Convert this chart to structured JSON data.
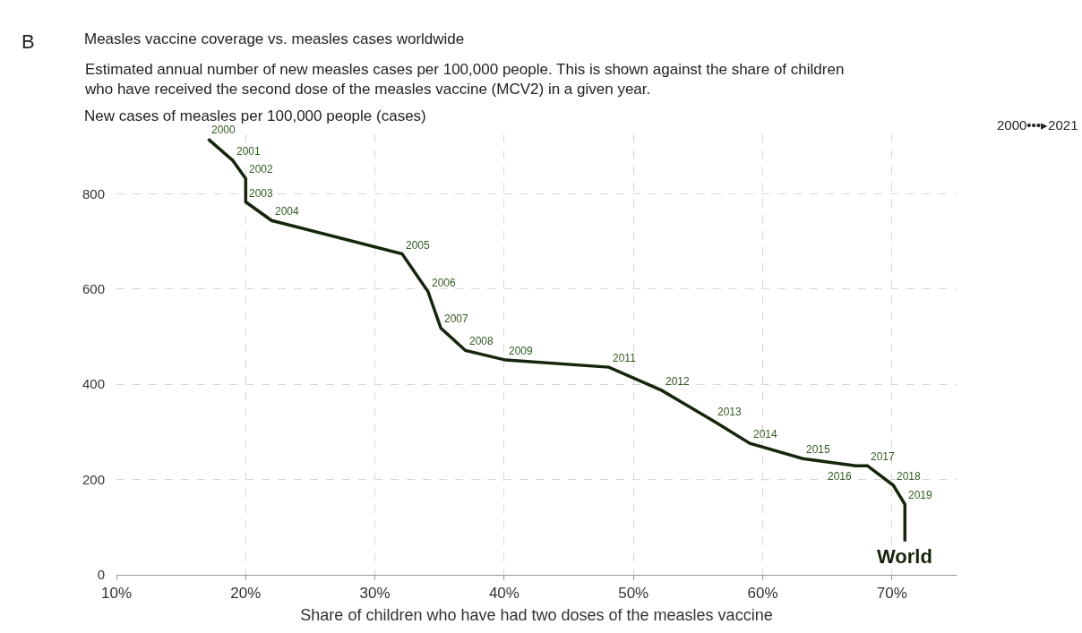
{
  "chart_data": {
    "type": "line",
    "title": "Measles vaccine coverage vs. measles cases worldwide",
    "subtitle": "Estimated annual number of new measles cases per 100,000 people. This is shown against the share of children who have received the second dose of the measles vaccine (MCV2) in a given year.",
    "ylabel": "New cases of measles per 100,000 people (cases)",
    "xlabel": "Share of children who have had two doses of the measles vaccine",
    "series": [
      {
        "name": "World",
        "color": "#15260c",
        "x": [
          17.1,
          19.0,
          20.0,
          20.0,
          22.0,
          32.1,
          34.1,
          35.1,
          37.0,
          40.1,
          48.1,
          52.2,
          56.2,
          59.0,
          63.1,
          67.2,
          68.1,
          70.1,
          71.0,
          71.0
        ],
        "values": [
          915,
          870,
          832,
          783,
          744,
          674,
          595,
          518,
          471,
          451,
          436,
          387,
          323,
          276,
          244,
          229,
          229,
          188,
          148,
          70
        ]
      }
    ],
    "annotations": [
      "B",
      "2000•••▸2021",
      {
        "text": "2000",
        "x": 17.1,
        "y": 915
      },
      {
        "text": "2001",
        "x": 19.0,
        "y": 870
      },
      {
        "text": "2002",
        "x": 20.0,
        "y": 832
      },
      {
        "text": "2003",
        "x": 20.0,
        "y": 783
      },
      {
        "text": "2004",
        "x": 22.0,
        "y": 744
      },
      {
        "text": "2005",
        "x": 32.1,
        "y": 674
      },
      {
        "text": "2006",
        "x": 34.1,
        "y": 595
      },
      {
        "text": "2007",
        "x": 35.1,
        "y": 518
      },
      {
        "text": "2008",
        "x": 37.0,
        "y": 471
      },
      {
        "text": "2009",
        "x": 40.1,
        "y": 451
      },
      {
        "text": "2011",
        "x": 48.1,
        "y": 436
      },
      {
        "text": "2012",
        "x": 52.2,
        "y": 387
      },
      {
        "text": "2013",
        "x": 56.2,
        "y": 323
      },
      {
        "text": "2014",
        "x": 59.0,
        "y": 276
      },
      {
        "text": "2015",
        "x": 63.1,
        "y": 244
      },
      {
        "text": "2016",
        "x": 67.2,
        "y": 229
      },
      {
        "text": "2017",
        "x": 68.1,
        "y": 229
      },
      {
        "text": "2018",
        "x": 70.1,
        "y": 188
      },
      {
        "text": "2019",
        "x": 71.0,
        "y": 148
      }
    ],
    "xlim": [
      10,
      75
    ],
    "ylim": [
      0,
      925
    ],
    "xticks": [
      {
        "value": 10,
        "label": "10%"
      },
      {
        "value": 20,
        "label": "20%"
      },
      {
        "value": 30,
        "label": "30%"
      },
      {
        "value": 40,
        "label": "40%"
      },
      {
        "value": 50,
        "label": "50%"
      },
      {
        "value": 60,
        "label": "60%"
      },
      {
        "value": 70,
        "label": "70%"
      }
    ],
    "yticks": [
      0,
      200,
      400,
      600,
      800
    ],
    "grid": true,
    "legend": false,
    "marker": "none",
    "line_style": "solid"
  }
}
